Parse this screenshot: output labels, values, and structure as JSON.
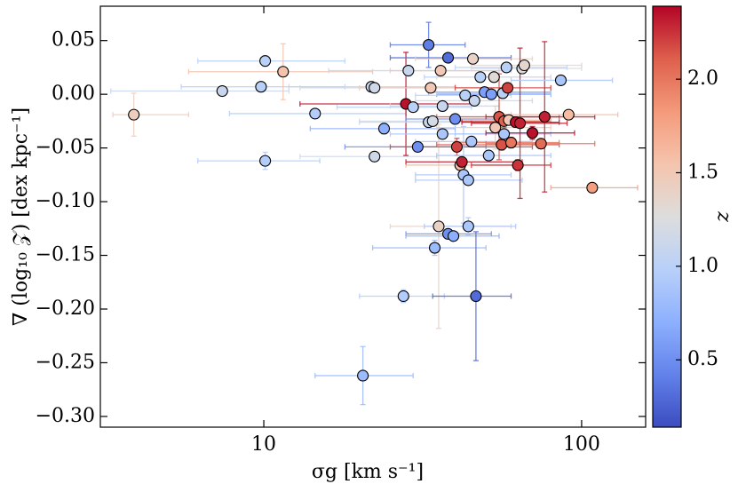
{
  "chart_data": {
    "type": "scatter",
    "x_label": "σg [km s⁻¹]",
    "y_label": "∇ (log₁₀ 𝒵) [dex kpc⁻¹]",
    "colorbar_label": "z",
    "log_x": true,
    "cmap": "coolwarm",
    "xlim": [
      3.06,
      159
    ],
    "ylim": [
      -0.31,
      0.082
    ],
    "xticks": [
      10,
      100
    ],
    "yticks": [
      {
        "value": 0.05,
        "label": "0.05"
      },
      {
        "value": 0,
        "label": "0.00"
      },
      {
        "value": -0.05,
        "label": "−0.05"
      },
      {
        "value": -0.1,
        "label": "−0.10"
      },
      {
        "value": -0.15,
        "label": "−0.15"
      },
      {
        "value": -0.2,
        "label": "−0.20"
      },
      {
        "value": -0.25,
        "label": "−0.25"
      },
      {
        "value": -0.3,
        "label": "−0.30"
      }
    ],
    "clim": [
      0.14,
      2.39
    ],
    "cticks": [
      0.5,
      {
        "value": 1,
        "label": "1.0"
      },
      1.5,
      {
        "value": 2,
        "label": "2.0"
      }
    ],
    "x": [
      3.9,
      7.4,
      9.8,
      10.1,
      10.1,
      11.5,
      14.5,
      21.8,
      22.3,
      22.3,
      23.9,
      20.5,
      27.5,
      28,
      28.5,
      29.5,
      30.5,
      33,
      33.5,
      33,
      34,
      34.5,
      35.5,
      36,
      36.5,
      36.5,
      38,
      38,
      39.5,
      40,
      40.5,
      41.5,
      42,
      42.5,
      43,
      44,
      44,
      45,
      45.5,
      46,
      46.5,
      48,
      49.5,
      51,
      52,
      53,
      53.5,
      55,
      56,
      56.5,
      57,
      57,
      58,
      58.5,
      59,
      60,
      62,
      63,
      64,
      65,
      66,
      70,
      74.5,
      76.5,
      86,
      91,
      108
    ],
    "y": [
      -0.019,
      0.003,
      0.007,
      0.031,
      -0.062,
      0.021,
      -0.018,
      0.007,
      0.006,
      -0.058,
      -0.032,
      -0.262,
      -0.188,
      -0.009,
      0.022,
      -0.012,
      -0.049,
      0.046,
      0.006,
      -0.026,
      -0.025,
      -0.143,
      -0.123,
      0.022,
      -0.011,
      -0.037,
      0.034,
      -0.13,
      -0.132,
      -0.023,
      -0.049,
      -0.066,
      -0.063,
      -0.075,
      -0.001,
      -0.123,
      -0.08,
      -0.044,
      0.033,
      -0.006,
      -0.188,
      0.016,
      0.002,
      -0.057,
      0,
      0.016,
      -0.031,
      -0.021,
      -0.047,
      0.001,
      -0.025,
      -0.037,
      0.025,
      0.006,
      -0.024,
      -0.045,
      -0.026,
      -0.066,
      -0.027,
      0.024,
      0.027,
      -0.036,
      -0.046,
      -0.021,
      0.013,
      -0.019,
      -0.087
    ],
    "z": [
      1.45,
      1.1,
      1,
      1,
      0.95,
      1.55,
      0.95,
      1.1,
      1.15,
      1.15,
      0.7,
      0.8,
      0.95,
      2.35,
      1.1,
      1,
      0.5,
      0.4,
      1.5,
      1.1,
      1.2,
      0.8,
      1.4,
      1.5,
      1.1,
      0.9,
      0.3,
      0.5,
      0.7,
      0.5,
      2.2,
      1.6,
      2.3,
      0.9,
      1,
      0.9,
      0.9,
      0.9,
      1.4,
      1.1,
      0.3,
      1,
      0.6,
      0.9,
      0.6,
      1.3,
      1.5,
      2.15,
      2.15,
      1,
      2.1,
      0.9,
      1,
      2.2,
      1.5,
      2,
      2.35,
      2.25,
      2.3,
      1.25,
      1.35,
      2.35,
      2.05,
      2.3,
      0.9,
      1.6,
      1.8
    ],
    "x_err_low": [
      3.35,
      3.3,
      5.5,
      6.2,
      6.2,
      5.8,
      7.8,
      12,
      13,
      13,
      14,
      14.5,
      20,
      13,
      16,
      17,
      18,
      25,
      20,
      20,
      20,
      22,
      25,
      25,
      25,
      25,
      25,
      28,
      28,
      28,
      25,
      28,
      28,
      30,
      30,
      32,
      30,
      30,
      30,
      30,
      34,
      32,
      33,
      35,
      35,
      35,
      35,
      35,
      35,
      35,
      40,
      40,
      40,
      40,
      40,
      40,
      42,
      45,
      45,
      45,
      45,
      50,
      50,
      50,
      60,
      60,
      80
    ],
    "x_err_high": [
      5.8,
      12,
      18,
      18,
      15,
      22,
      28,
      40,
      40,
      35,
      40,
      29.5,
      37,
      45,
      55,
      45,
      50,
      43,
      60,
      55,
      55,
      50,
      60,
      60,
      55,
      55,
      60,
      52,
      55,
      55,
      70,
      65,
      65,
      60,
      60,
      62,
      65,
      70,
      70,
      70,
      60,
      80,
      80,
      80,
      80,
      80,
      80,
      85,
      85,
      80,
      80,
      80,
      90,
      80,
      80,
      85,
      85,
      80,
      90,
      100,
      100,
      95,
      110,
      110,
      125,
      130,
      150
    ],
    "y_err": [
      0.02,
      0.004,
      0.004,
      0.005,
      0.008,
      0.026,
      0.004,
      0.003,
      0.003,
      0.003,
      0.005,
      0.027,
      0.006,
      0.048,
      0.005,
      0.003,
      0.003,
      0.021,
      0.003,
      0.003,
      0.003,
      0.007,
      0.095,
      0.003,
      0.003,
      0.003,
      0.004,
      0.003,
      0.003,
      0.003,
      0.008,
      0.004,
      0.004,
      0.045,
      0.003,
      0.008,
      0.004,
      0.003,
      0.004,
      0.003,
      0.06,
      0.003,
      0.003,
      0.004,
      0.003,
      0.004,
      0.02,
      0.04,
      0.005,
      0.003,
      0.006,
      0.004,
      0.003,
      0.004,
      0.004,
      0.005,
      0.003,
      0.005,
      0.07,
      0.004,
      0.004,
      0.006,
      0.003,
      0.07,
      0.003,
      0.003,
      0.003
    ]
  }
}
